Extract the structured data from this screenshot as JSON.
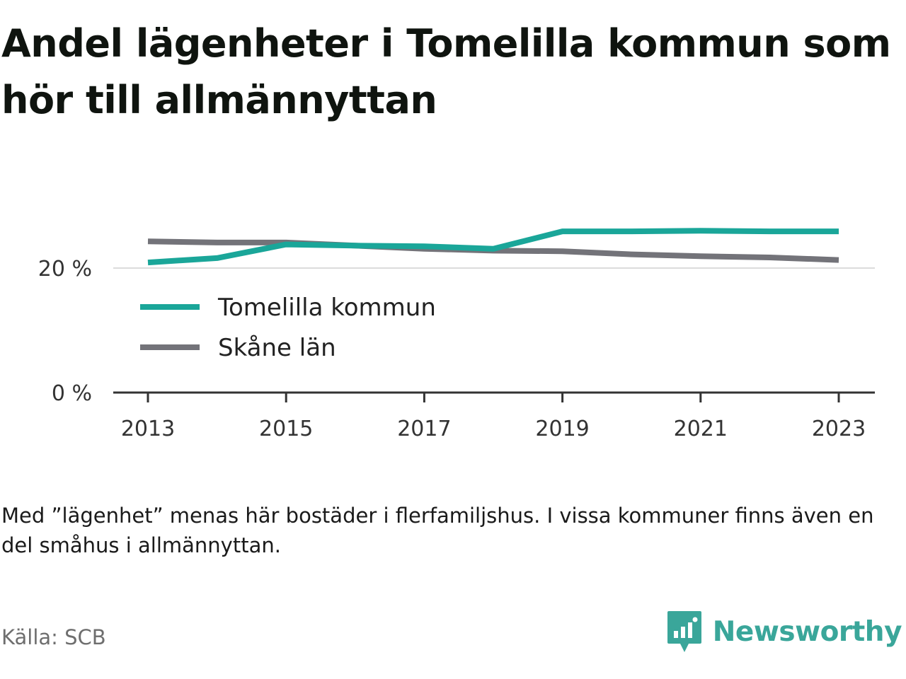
{
  "title": "Andel lägenheter i Tomelilla kommun som hör till allmännyttan",
  "note": "Med ”lägenhet” menas här bostäder i flerfamiljshus. I vissa kommuner finns även en del småhus i allmännyttan.",
  "source": "Källa: SCB",
  "brand": {
    "name": "Newsworthy",
    "icon": "newsworthy-logo-icon",
    "color": "#3aa69a"
  },
  "chart_data": {
    "type": "line",
    "x": [
      2013,
      2014,
      2015,
      2016,
      2017,
      2018,
      2019,
      2020,
      2021,
      2022,
      2023
    ],
    "x_ticks": [
      "2013",
      "2015",
      "2017",
      "2019",
      "2021",
      "2023"
    ],
    "y_ticks": [
      "0 %",
      "20 %"
    ],
    "ylim": [
      0,
      26
    ],
    "xlim": [
      2012.5,
      2023.5
    ],
    "grid": true,
    "legend_position": "inside-lower-left",
    "series": [
      {
        "name": "Tomelilla kommun",
        "color": "#1aa699",
        "values": [
          20.9,
          21.6,
          23.8,
          23.6,
          23.5,
          23.1,
          25.9,
          25.9,
          26.0,
          25.9,
          25.9
        ]
      },
      {
        "name": "Skåne län",
        "color": "#737379",
        "values": [
          24.3,
          24.1,
          24.1,
          23.6,
          23.1,
          22.8,
          22.7,
          22.2,
          21.9,
          21.7,
          21.3
        ]
      }
    ]
  }
}
